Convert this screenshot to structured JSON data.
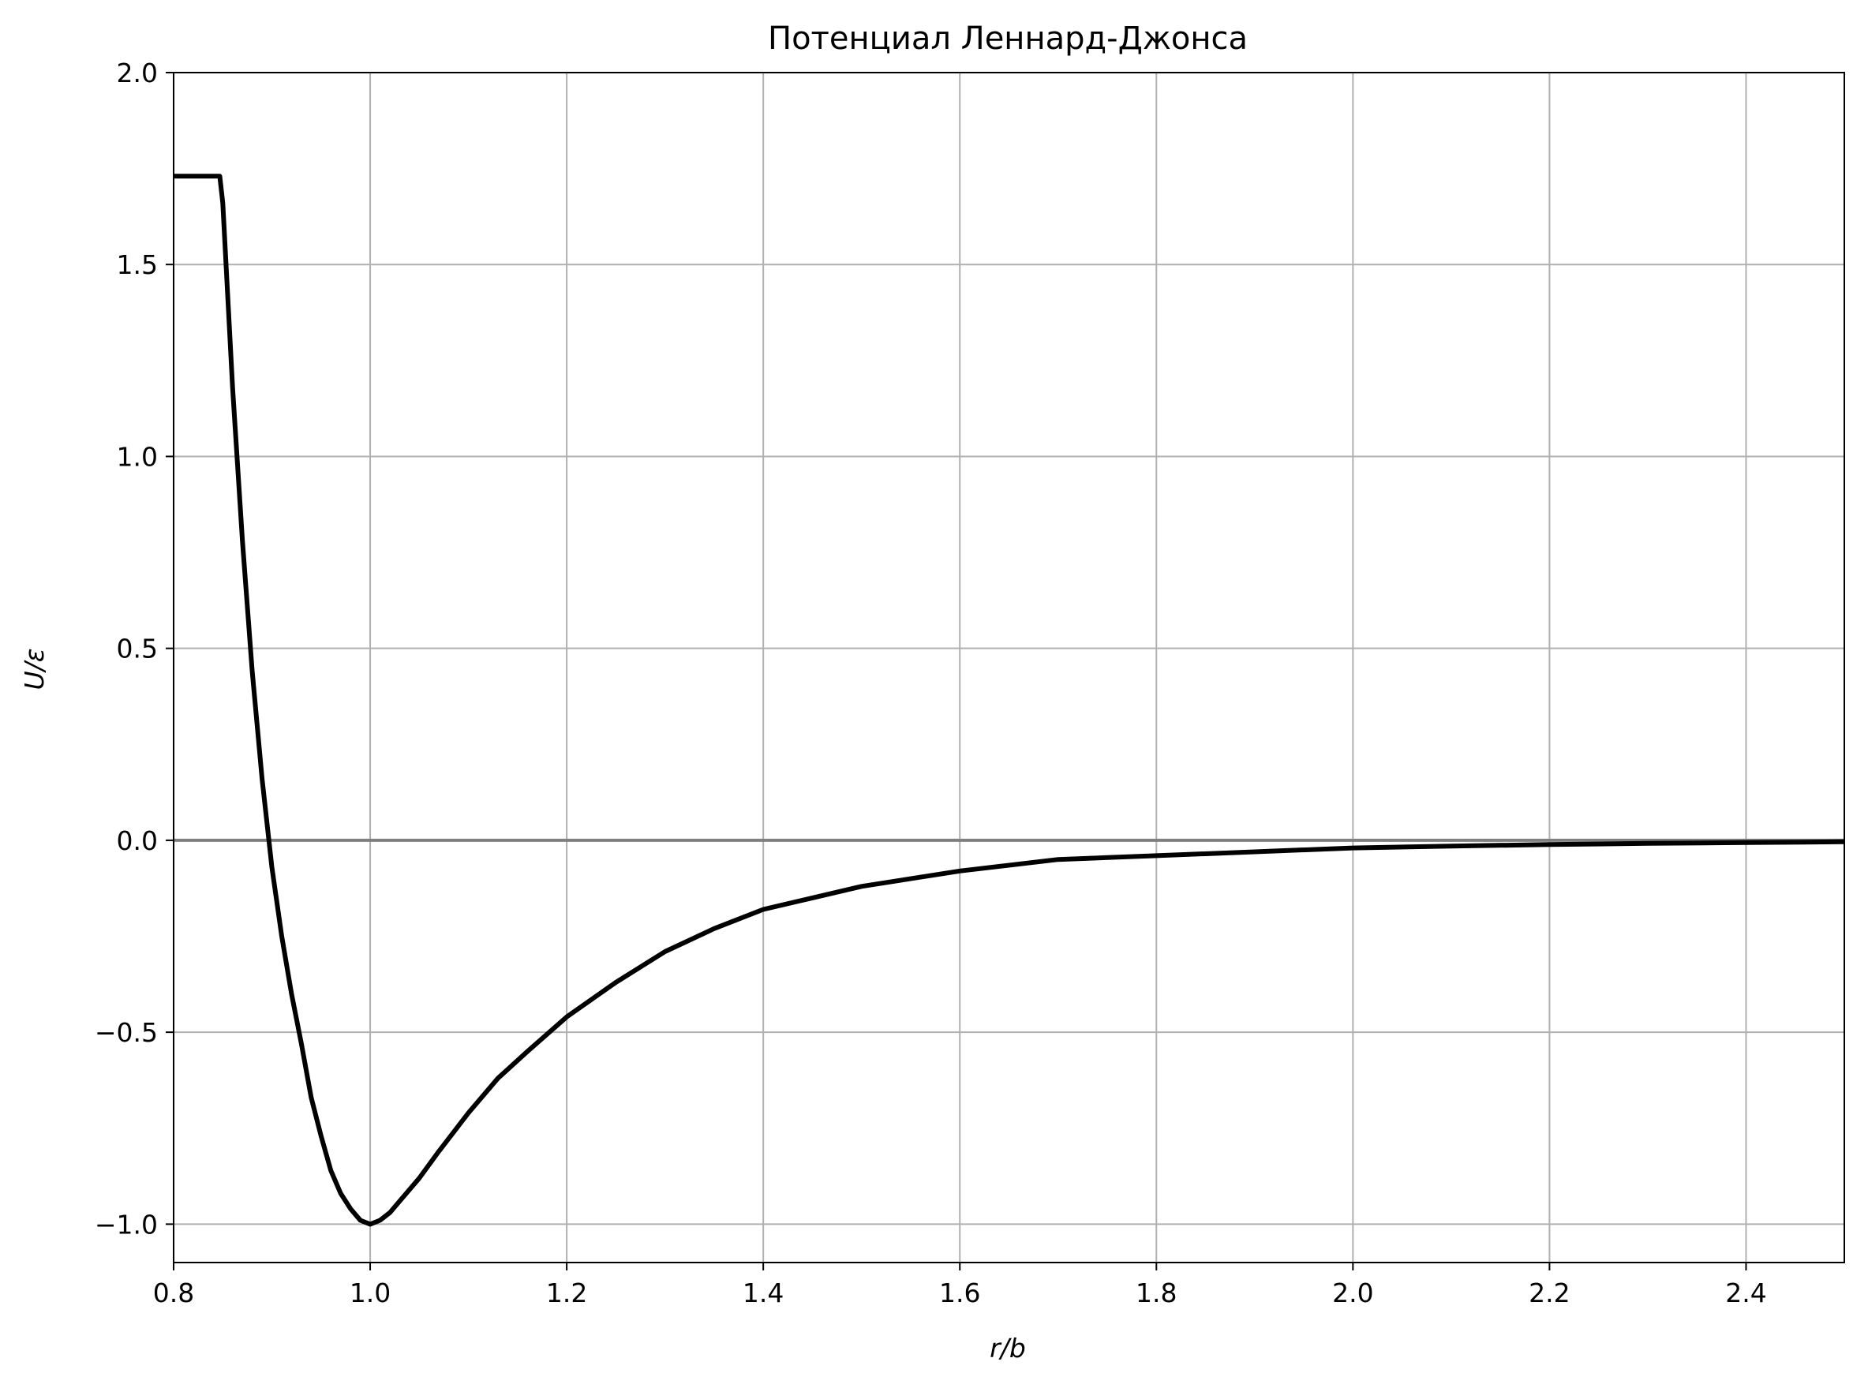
{
  "chart_data": {
    "type": "line",
    "title": "Потенциал Леннард-Джонса",
    "xlabel": "r/b",
    "ylabel": "U/ε",
    "xlim": [
      0.8,
      2.5
    ],
    "ylim": [
      -1.1,
      2.0
    ],
    "x_ticks": [
      0.8,
      1.0,
      1.2,
      1.4,
      1.6,
      1.8,
      2.0,
      2.2,
      2.4
    ],
    "y_ticks": [
      -1.0,
      -0.5,
      0.0,
      0.5,
      1.0,
      1.5,
      2.0
    ],
    "x_tick_labels": [
      "0.8",
      "1.0",
      "1.2",
      "1.4",
      "1.6",
      "1.8",
      "2.0",
      "2.2",
      "2.4"
    ],
    "y_tick_labels": [
      "−1.0",
      "−0.5",
      "0.0",
      "0.5",
      "1.0",
      "1.5",
      "2.0"
    ],
    "grid": true,
    "reference_line": {
      "y": 0.0,
      "color": "#808080"
    },
    "series": [
      {
        "color": "#000000",
        "x": [
          0.8,
          0.82,
          0.84,
          0.847,
          0.85,
          0.86,
          0.87,
          0.88,
          0.89,
          0.9,
          0.91,
          0.92,
          0.93,
          0.94,
          0.95,
          0.96,
          0.97,
          0.98,
          0.99,
          1.0,
          1.01,
          1.02,
          1.03,
          1.05,
          1.07,
          1.1,
          1.13,
          1.16,
          1.2,
          1.25,
          1.3,
          1.35,
          1.4,
          1.45,
          1.5,
          1.6,
          1.7,
          1.8,
          1.9,
          2.0,
          2.1,
          2.2,
          2.3,
          2.4,
          2.5
        ],
        "y": [
          1.73,
          1.73,
          1.73,
          1.73,
          1.66,
          1.18,
          0.78,
          0.44,
          0.16,
          -0.07,
          -0.25,
          -0.4,
          -0.53,
          -0.67,
          -0.77,
          -0.86,
          -0.92,
          -0.96,
          -0.99,
          -1.0,
          -0.99,
          -0.97,
          -0.94,
          -0.88,
          -0.81,
          -0.71,
          -0.62,
          -0.55,
          -0.46,
          -0.37,
          -0.29,
          -0.23,
          -0.18,
          -0.15,
          -0.12,
          -0.08,
          -0.05,
          -0.04,
          -0.03,
          -0.02,
          -0.015,
          -0.011,
          -0.008,
          -0.006,
          -0.004
        ]
      }
    ]
  }
}
